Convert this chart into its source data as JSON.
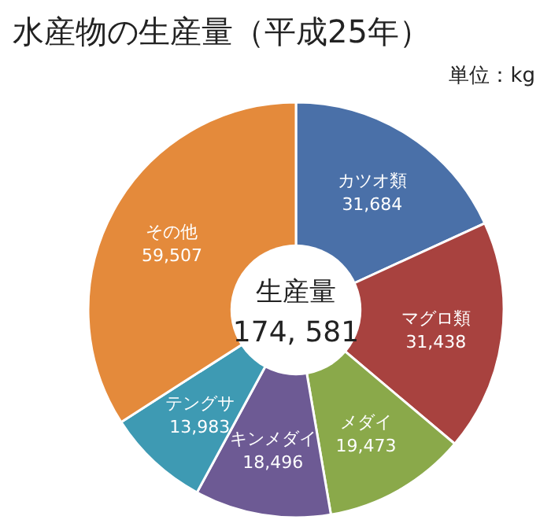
{
  "chart_data": {
    "type": "donut",
    "title": "水産物の生産量（平成25年）",
    "subtitle": "単位：kg",
    "categories": [
      "カツオ類",
      "マグロ類",
      "メダイ",
      "キンメダイ",
      "テングサ",
      "その他"
    ],
    "values": [
      31684,
      31438,
      19473,
      18496,
      13983,
      59507
    ],
    "value_labels": [
      "31,684",
      "31,438",
      "19,473",
      "18,496",
      "13,983",
      "59,507"
    ],
    "colors": [
      "#4a70a8",
      "#a8423f",
      "#8aa94a",
      "#6d5a94",
      "#3e9ab3",
      "#e48a3b"
    ],
    "annotations": [
      "生産量",
      "174, 581"
    ]
  }
}
